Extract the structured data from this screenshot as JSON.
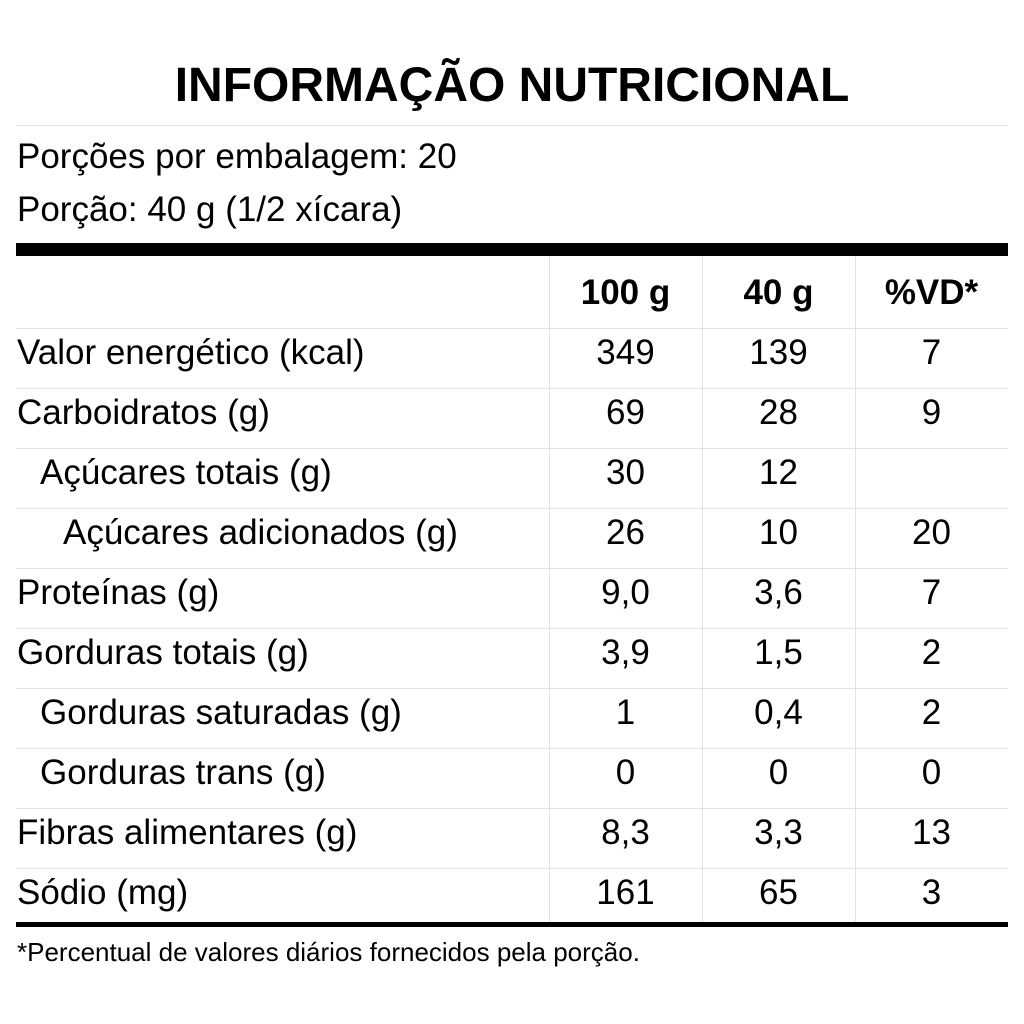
{
  "title": "INFORMAÇÃO NUTRICIONAL",
  "servings": [
    "Porções por embalagem: 20",
    "Porção: 40 g (1/2 xícara)"
  ],
  "table": {
    "header": [
      "100 g",
      "40 g",
      "%VD*"
    ],
    "rows": [
      {
        "label": "Valor energético (kcal)",
        "level": 0,
        "cells": [
          349,
          139,
          7
        ]
      },
      {
        "label": "Carboidratos (g)",
        "level": 0,
        "cells": [
          69,
          28,
          9
        ]
      },
      {
        "label": "Açúcares totais (g)",
        "level": 1,
        "cells": [
          30,
          12
        ]
      },
      {
        "label": "Açúcares adicionados (g)",
        "level": 2,
        "cells": [
          26,
          10,
          20
        ]
      },
      {
        "label": "Proteínas (g)",
        "level": 0,
        "cells": [
          "9,0",
          "3,6",
          7
        ]
      },
      {
        "label": "Gorduras totais (g)",
        "level": 0,
        "cells": [
          "3,9",
          "1,5",
          2
        ]
      },
      {
        "label": "Gorduras saturadas (g)",
        "level": 1,
        "cells": [
          1,
          "0,4",
          2
        ]
      },
      {
        "label": "Gorduras trans (g)",
        "level": 1,
        "cells": [
          0,
          0,
          0
        ]
      },
      {
        "label": "Fibras alimentares (g)",
        "level": 0,
        "cells": [
          "8,3",
          "3,3",
          13
        ]
      },
      {
        "label": "Sódio (mg)",
        "level": 0,
        "cells": [
          161,
          65,
          3
        ]
      }
    ]
  },
  "footnote": "*Percentual de valores diários fornecidos pela porção."
}
